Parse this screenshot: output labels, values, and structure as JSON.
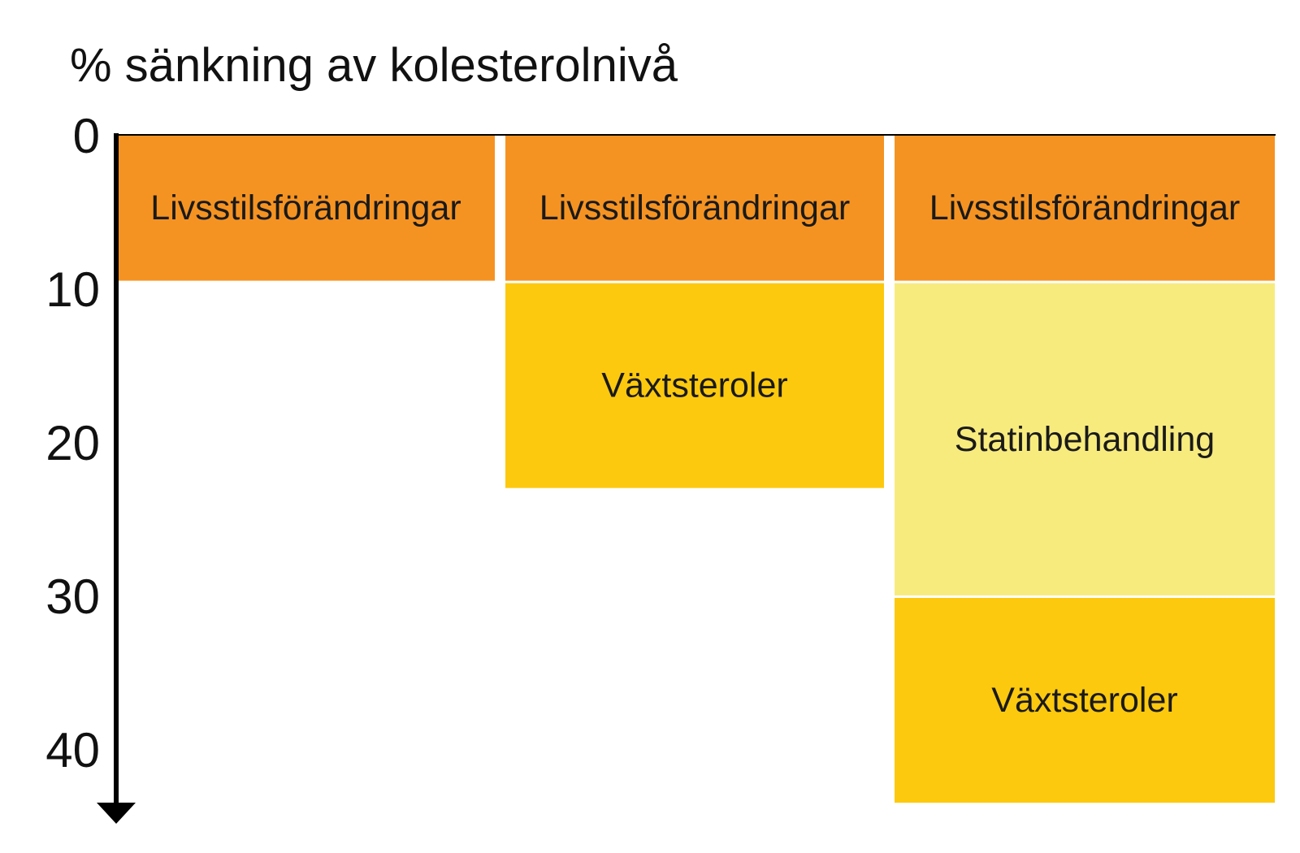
{
  "chart_data": {
    "type": "stacked-bar",
    "title": "% sänkning av kolesterolnivå",
    "ylim": [
      0,
      43
    ],
    "y_direction": "downward",
    "y_ticks": [
      "0",
      "10",
      "20",
      "30",
      "40"
    ],
    "columns": [
      {
        "segments": [
          {
            "label": "Livsstilsförändringar",
            "start": 0,
            "end": 9.5,
            "color": "#F59322"
          }
        ]
      },
      {
        "segments": [
          {
            "label": "Livsstilsförändringar",
            "start": 0,
            "end": 9.5,
            "color": "#F59322"
          },
          {
            "label": "Växtsteroler",
            "start": 9.5,
            "end": 23,
            "color": "#FDC90E"
          }
        ]
      },
      {
        "segments": [
          {
            "label": "Livsstilsförändringar",
            "start": 0,
            "end": 9.5,
            "color": "#F59322"
          },
          {
            "label": "Statinbehandling",
            "start": 9.5,
            "end": 30,
            "color": "#F7EB7E"
          },
          {
            "label": "Växtsteroler",
            "start": 30,
            "end": 43.5,
            "color": "#FDC90E"
          }
        ]
      }
    ],
    "grid": false,
    "legend": "none"
  }
}
